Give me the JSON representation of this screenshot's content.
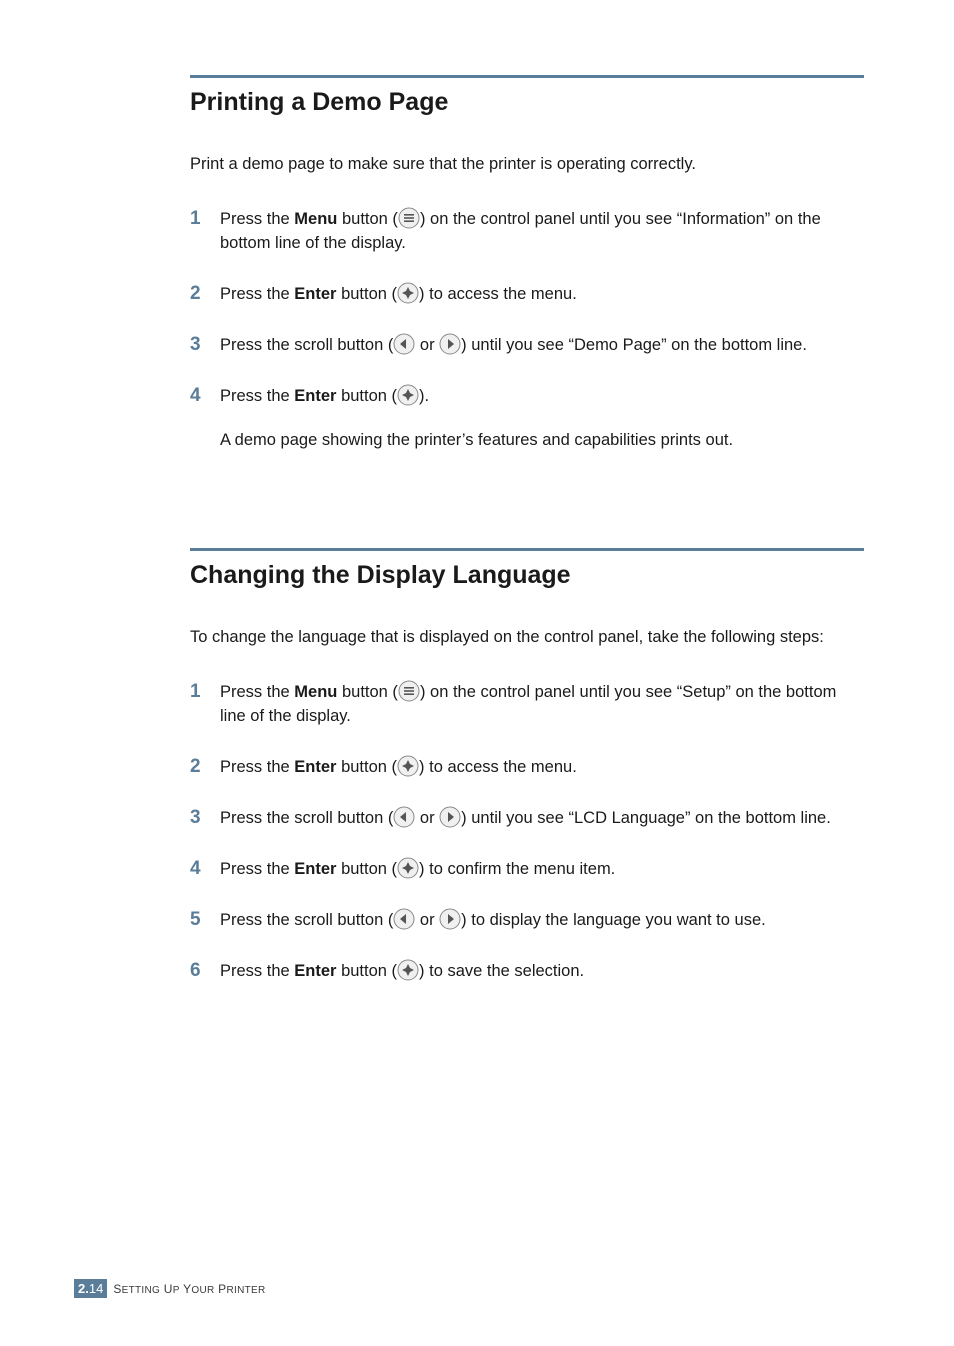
{
  "colors": {
    "accent": "#5a7d99",
    "text": "#1a1a1a",
    "white": "#ffffff",
    "icon_stroke": "#6b6b6b",
    "icon_fill_dark": "#555555"
  },
  "section1": {
    "title": "Printing a Demo Page",
    "intro": "Print a demo page to make sure that the printer is operating correctly.",
    "steps": [
      {
        "num": "1",
        "pre": "Press the ",
        "bold": "Menu",
        "mid": " button (",
        "icon": "menu",
        "post": ") on the control panel until you see “Information” on the bottom line of the display."
      },
      {
        "num": "2",
        "pre": "Press the ",
        "bold": "Enter",
        "mid": " button (",
        "icon": "enter",
        "post": ") to access the menu."
      },
      {
        "num": "3",
        "pre": "Press the scroll button (",
        "bold": "",
        "mid": "",
        "icon": "scroll",
        "post": ") until you see “Demo Page” on the bottom line."
      },
      {
        "num": "4",
        "pre": "Press the ",
        "bold": "Enter",
        "mid": " button (",
        "icon": "enter",
        "post": ").",
        "extra": "A demo page showing the printer’s features and capabilities prints out."
      }
    ]
  },
  "section2": {
    "title": "Changing the Display Language",
    "intro": "To change the language that is displayed on the control panel, take the following steps:",
    "steps": [
      {
        "num": "1",
        "pre": "Press the ",
        "bold": "Menu",
        "mid": " button (",
        "icon": "menu",
        "post": ") on the control panel until you see “Setup” on the bottom line of the display."
      },
      {
        "num": "2",
        "pre": "Press the ",
        "bold": "Enter",
        "mid": " button (",
        "icon": "enter",
        "post": ") to access the menu."
      },
      {
        "num": "3",
        "pre": "Press the scroll button (",
        "bold": "",
        "mid": "",
        "icon": "scroll",
        "post": ") until you see “LCD Language” on the bottom line."
      },
      {
        "num": "4",
        "pre": "Press the ",
        "bold": "Enter",
        "mid": " button (",
        "icon": "enter",
        "post": ") to confirm the menu item."
      },
      {
        "num": "5",
        "pre": "Press the scroll button (",
        "bold": "",
        "mid": "",
        "icon": "scroll",
        "post": ") to display the language you want to use."
      },
      {
        "num": "6",
        "pre": "Press the ",
        "bold": "Enter",
        "mid": " button (",
        "icon": "enter",
        "post": ") to save the selection."
      }
    ]
  },
  "footer": {
    "chapter": "2.",
    "page": "14",
    "label": "SETTING UP YOUR PRINTER"
  },
  "scroll_or": " or "
}
